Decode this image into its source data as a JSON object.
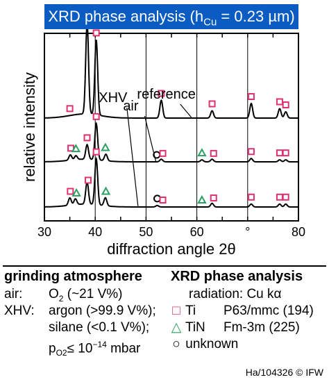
{
  "chart_data": {
    "type": "line",
    "title_prefix": "XRD phase analysis (h",
    "title_sub": "Cu",
    "title_suffix": " = 0.23 µm)",
    "xlabel": "diffraction angle 2θ",
    "ylabel": "relative intensity",
    "xlim": [
      30,
      80
    ],
    "xticks": [
      30,
      35,
      40,
      45,
      50,
      55,
      60,
      65,
      70,
      75,
      80
    ],
    "xtick_labels": [
      "30",
      "",
      "40",
      "",
      "50",
      "",
      "60",
      "",
      "°",
      "",
      "80"
    ],
    "vlines_x": [
      40,
      50,
      60,
      70
    ],
    "series": [
      {
        "name": "reference",
        "label_x": 54,
        "peaks": [
          [
            38.4,
            0.87
          ],
          [
            40.2,
            0.72
          ],
          [
            53.0,
            0.17
          ],
          [
            63.0,
            0.07
          ],
          [
            70.7,
            0.14
          ],
          [
            76.3,
            0.09
          ],
          [
            77.5,
            0.06
          ]
        ],
        "markers": [
          {
            "x": 35.0,
            "sym": "Ti"
          },
          {
            "x": 38.4,
            "sym": "Ti"
          },
          {
            "x": 40.2,
            "sym": "Ti"
          },
          {
            "x": 53.0,
            "sym": "Ti"
          },
          {
            "x": 63.0,
            "sym": "Ti"
          },
          {
            "x": 70.7,
            "sym": "Ti"
          },
          {
            "x": 76.3,
            "sym": "Ti"
          },
          {
            "x": 77.5,
            "sym": "Ti"
          }
        ]
      },
      {
        "name": "air",
        "label_x": 47,
        "peaks": [
          [
            35.1,
            0.08
          ],
          [
            36.2,
            0.06
          ],
          [
            38.4,
            0.22
          ],
          [
            40.2,
            0.55
          ],
          [
            42.1,
            0.1
          ],
          [
            53.0,
            0.04
          ],
          [
            61.0,
            0.03
          ],
          [
            63.0,
            0.04
          ],
          [
            70.7,
            0.05
          ],
          [
            76.3,
            0.03
          ],
          [
            77.5,
            0.03
          ]
        ],
        "markers": [
          {
            "x": 35.2,
            "sym": "Ti"
          },
          {
            "x": 36.2,
            "sym": "TiN"
          },
          {
            "x": 38.4,
            "sym": "Ti"
          },
          {
            "x": 40.2,
            "sym": "Ti"
          },
          {
            "x": 42.0,
            "sym": "TiN"
          },
          {
            "x": 52.1,
            "sym": "unknown"
          },
          {
            "x": 53.3,
            "sym": "Ti"
          },
          {
            "x": 61.0,
            "sym": "TiN"
          },
          {
            "x": 63.3,
            "sym": "Ti"
          },
          {
            "x": 70.7,
            "sym": "Ti"
          },
          {
            "x": 76.3,
            "sym": "Ti"
          },
          {
            "x": 77.5,
            "sym": "Ti"
          }
        ]
      },
      {
        "name": "XHV",
        "label_x": 43.5,
        "peaks": [
          [
            35.0,
            0.1
          ],
          [
            36.1,
            0.08
          ],
          [
            38.4,
            0.3
          ],
          [
            40.2,
            0.63
          ],
          [
            42.0,
            0.11
          ],
          [
            52.2,
            0.02
          ],
          [
            63.0,
            0.05
          ],
          [
            70.7,
            0.04
          ],
          [
            76.3,
            0.04
          ],
          [
            77.5,
            0.04
          ]
        ],
        "markers": [
          {
            "x": 35.1,
            "sym": "Ti"
          },
          {
            "x": 36.3,
            "sym": "TiN"
          },
          {
            "x": 38.6,
            "sym": "Ti"
          },
          {
            "x": 40.2,
            "sym": "Ti"
          },
          {
            "x": 42.1,
            "sym": "TiN"
          },
          {
            "x": 52.2,
            "sym": "unknown"
          },
          {
            "x": 53.3,
            "sym": "Ti"
          },
          {
            "x": 61.0,
            "sym": "TiN"
          },
          {
            "x": 63.3,
            "sym": "Ti"
          },
          {
            "x": 70.7,
            "sym": "Ti"
          },
          {
            "x": 76.3,
            "sym": "Ti"
          },
          {
            "x": 77.5,
            "sym": "Ti"
          }
        ]
      }
    ],
    "grid": false
  },
  "colors": {
    "banner": "#0a5cc2",
    "ti_marker": "#e0306f",
    "tin_marker": "#2aa060",
    "unknown_marker": "#000000"
  },
  "legend_left": {
    "heading": "grinding atmosphere",
    "air_key": "air:",
    "air_val_pre": "O",
    "air_val_sub": "2",
    "air_val_post": " (~21 V%)",
    "xhv_key": "XHV:",
    "xhv_val": "argon (>99.9 V%);",
    "xhv_val2": "silane (<0.1 V%);",
    "xhv_val3_pre": "p",
    "xhv_val3_sub": "O2",
    "xhv_val3_mid": "≤ 10",
    "xhv_val3_sup": "−14",
    "xhv_val3_post": " mbar"
  },
  "legend_right": {
    "heading": "XRD phase analysis",
    "radiation": "radiation: Cu kα",
    "ti_symbol": "□",
    "ti_label": "Ti",
    "ti_space": "P63/mmc (194)",
    "tin_symbol": "△",
    "tin_label": "TiN",
    "tin_space": "Fm-3m (225)",
    "unknown_symbol": "○",
    "unknown_label": "unknown"
  },
  "footer": "Ha/104326 © IFW"
}
